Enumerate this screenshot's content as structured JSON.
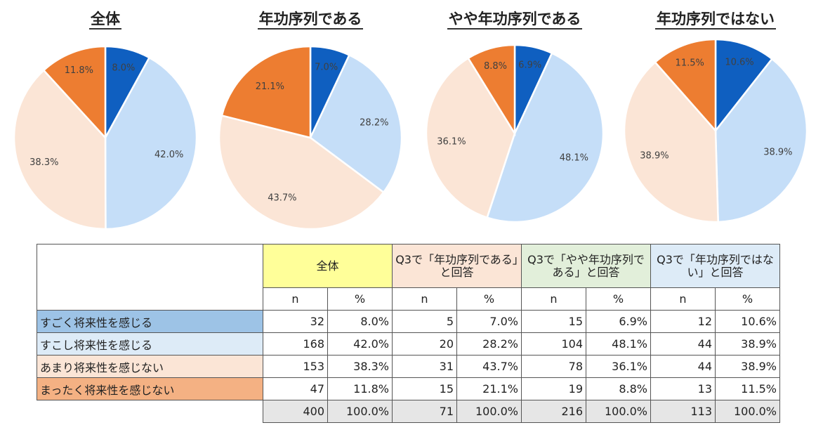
{
  "chart_data": [
    {
      "type": "pie",
      "title": "全体",
      "labels": [
        "すごく将来性を感じる",
        "すこし将来性を感じる",
        "あまり将来性を感じない",
        "まったく将来性を感じない"
      ],
      "values": [
        8.0,
        42.0,
        38.3,
        11.8
      ],
      "value_labels": [
        "8.0%",
        "42.0%",
        "38.3%",
        "11.8%"
      ]
    },
    {
      "type": "pie",
      "title": "年功序列である",
      "labels": [
        "すごく将来性を感じる",
        "すこし将来性を感じる",
        "あまり将来性を感じない",
        "まったく将来性を感じない"
      ],
      "values": [
        7.0,
        28.2,
        43.7,
        21.1
      ],
      "value_labels": [
        "7.0%",
        "28.2%",
        "43.7%",
        "21.1%"
      ]
    },
    {
      "type": "pie",
      "title": "やや年功序列である",
      "labels": [
        "すごく将来性を感じる",
        "すこし将来性を感じる",
        "あまり将来性を感じない",
        "まったく将来性を感じない"
      ],
      "values": [
        6.9,
        48.1,
        36.1,
        8.8
      ],
      "value_labels": [
        "6.9%",
        "48.1%",
        "36.1%",
        "8.8%"
      ]
    },
    {
      "type": "pie",
      "title": "年功序列ではない",
      "labels": [
        "すごく将来性を感じる",
        "すこし将来性を感じる",
        "あまり将来性を感じない",
        "まったく将来性を感じない"
      ],
      "values": [
        10.6,
        38.9,
        38.9,
        11.5
      ],
      "value_labels": [
        "10.6%",
        "38.9%",
        "38.9%",
        "11.5%"
      ]
    }
  ],
  "colors": {
    "slices": [
      "#0f5fc0",
      "#c5def8",
      "#fbe5d6",
      "#ed7d31"
    ],
    "header_all": "#ffff99",
    "header_g1": "#fbe5d6",
    "header_g2": "#e2efda",
    "header_g3": "#ddebf7",
    "row1": "#9dc3e6",
    "row2": "#ddebf7",
    "row3": "#fbe5d6",
    "row4": "#f4b183",
    "total_bg": "#e6e6e6"
  },
  "table": {
    "headers": [
      "全体",
      "Q3で「年功序列である」と回答",
      "Q3で「やや年功序列である」と回答",
      "Q3で「年功序列ではない」と回答"
    ],
    "n_label": "n",
    "pct_label": "%",
    "rows": [
      {
        "label": "すごく将来性を感じる",
        "cells": [
          "32",
          "8.0%",
          "5",
          "7.0%",
          "15",
          "6.9%",
          "12",
          "10.6%"
        ]
      },
      {
        "label": "すこし将来性を感じる",
        "cells": [
          "168",
          "42.0%",
          "20",
          "28.2%",
          "104",
          "48.1%",
          "44",
          "38.9%"
        ]
      },
      {
        "label": "あまり将来性を感じない",
        "cells": [
          "153",
          "38.3%",
          "31",
          "43.7%",
          "78",
          "36.1%",
          "44",
          "38.9%"
        ]
      },
      {
        "label": "まったく将来性を感じない",
        "cells": [
          "47",
          "11.8%",
          "15",
          "21.1%",
          "19",
          "8.8%",
          "13",
          "11.5%"
        ]
      }
    ],
    "total": [
      "400",
      "100.0%",
      "71",
      "100.0%",
      "216",
      "100.0%",
      "113",
      "100.0%"
    ]
  }
}
